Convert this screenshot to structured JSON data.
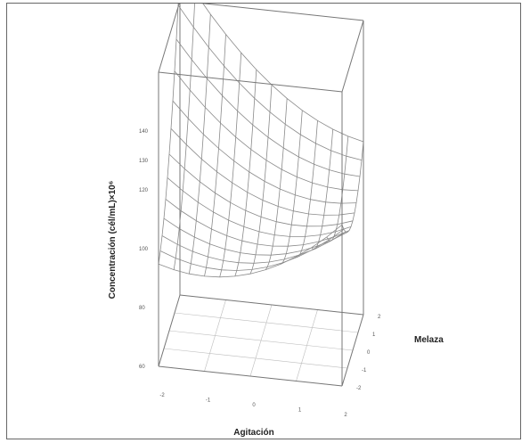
{
  "chart_data": {
    "type": "surface3d",
    "title": "",
    "xlabel": "Agitación",
    "ylabel": "Melaza",
    "zlabel": "Concentración (cél/mL)×10⁶",
    "x_ticks": [
      "-2",
      "-1",
      "0",
      "1",
      "2"
    ],
    "y_ticks": [
      "-2",
      "-1",
      "0",
      "1",
      "2"
    ],
    "z_ticks": [
      "60",
      "80",
      "100",
      "120",
      "130",
      "140"
    ],
    "xlim": [
      -2,
      2
    ],
    "ylim": [
      -2,
      2
    ],
    "zlim": [
      60,
      140
    ],
    "mesh_size": 13,
    "surface_model": {
      "description_free": true,
      "intercept": 102,
      "x": -4,
      "y": 10,
      "xx": 2.5,
      "yy": 3.2,
      "xy": -4.5
    },
    "grid": true
  }
}
